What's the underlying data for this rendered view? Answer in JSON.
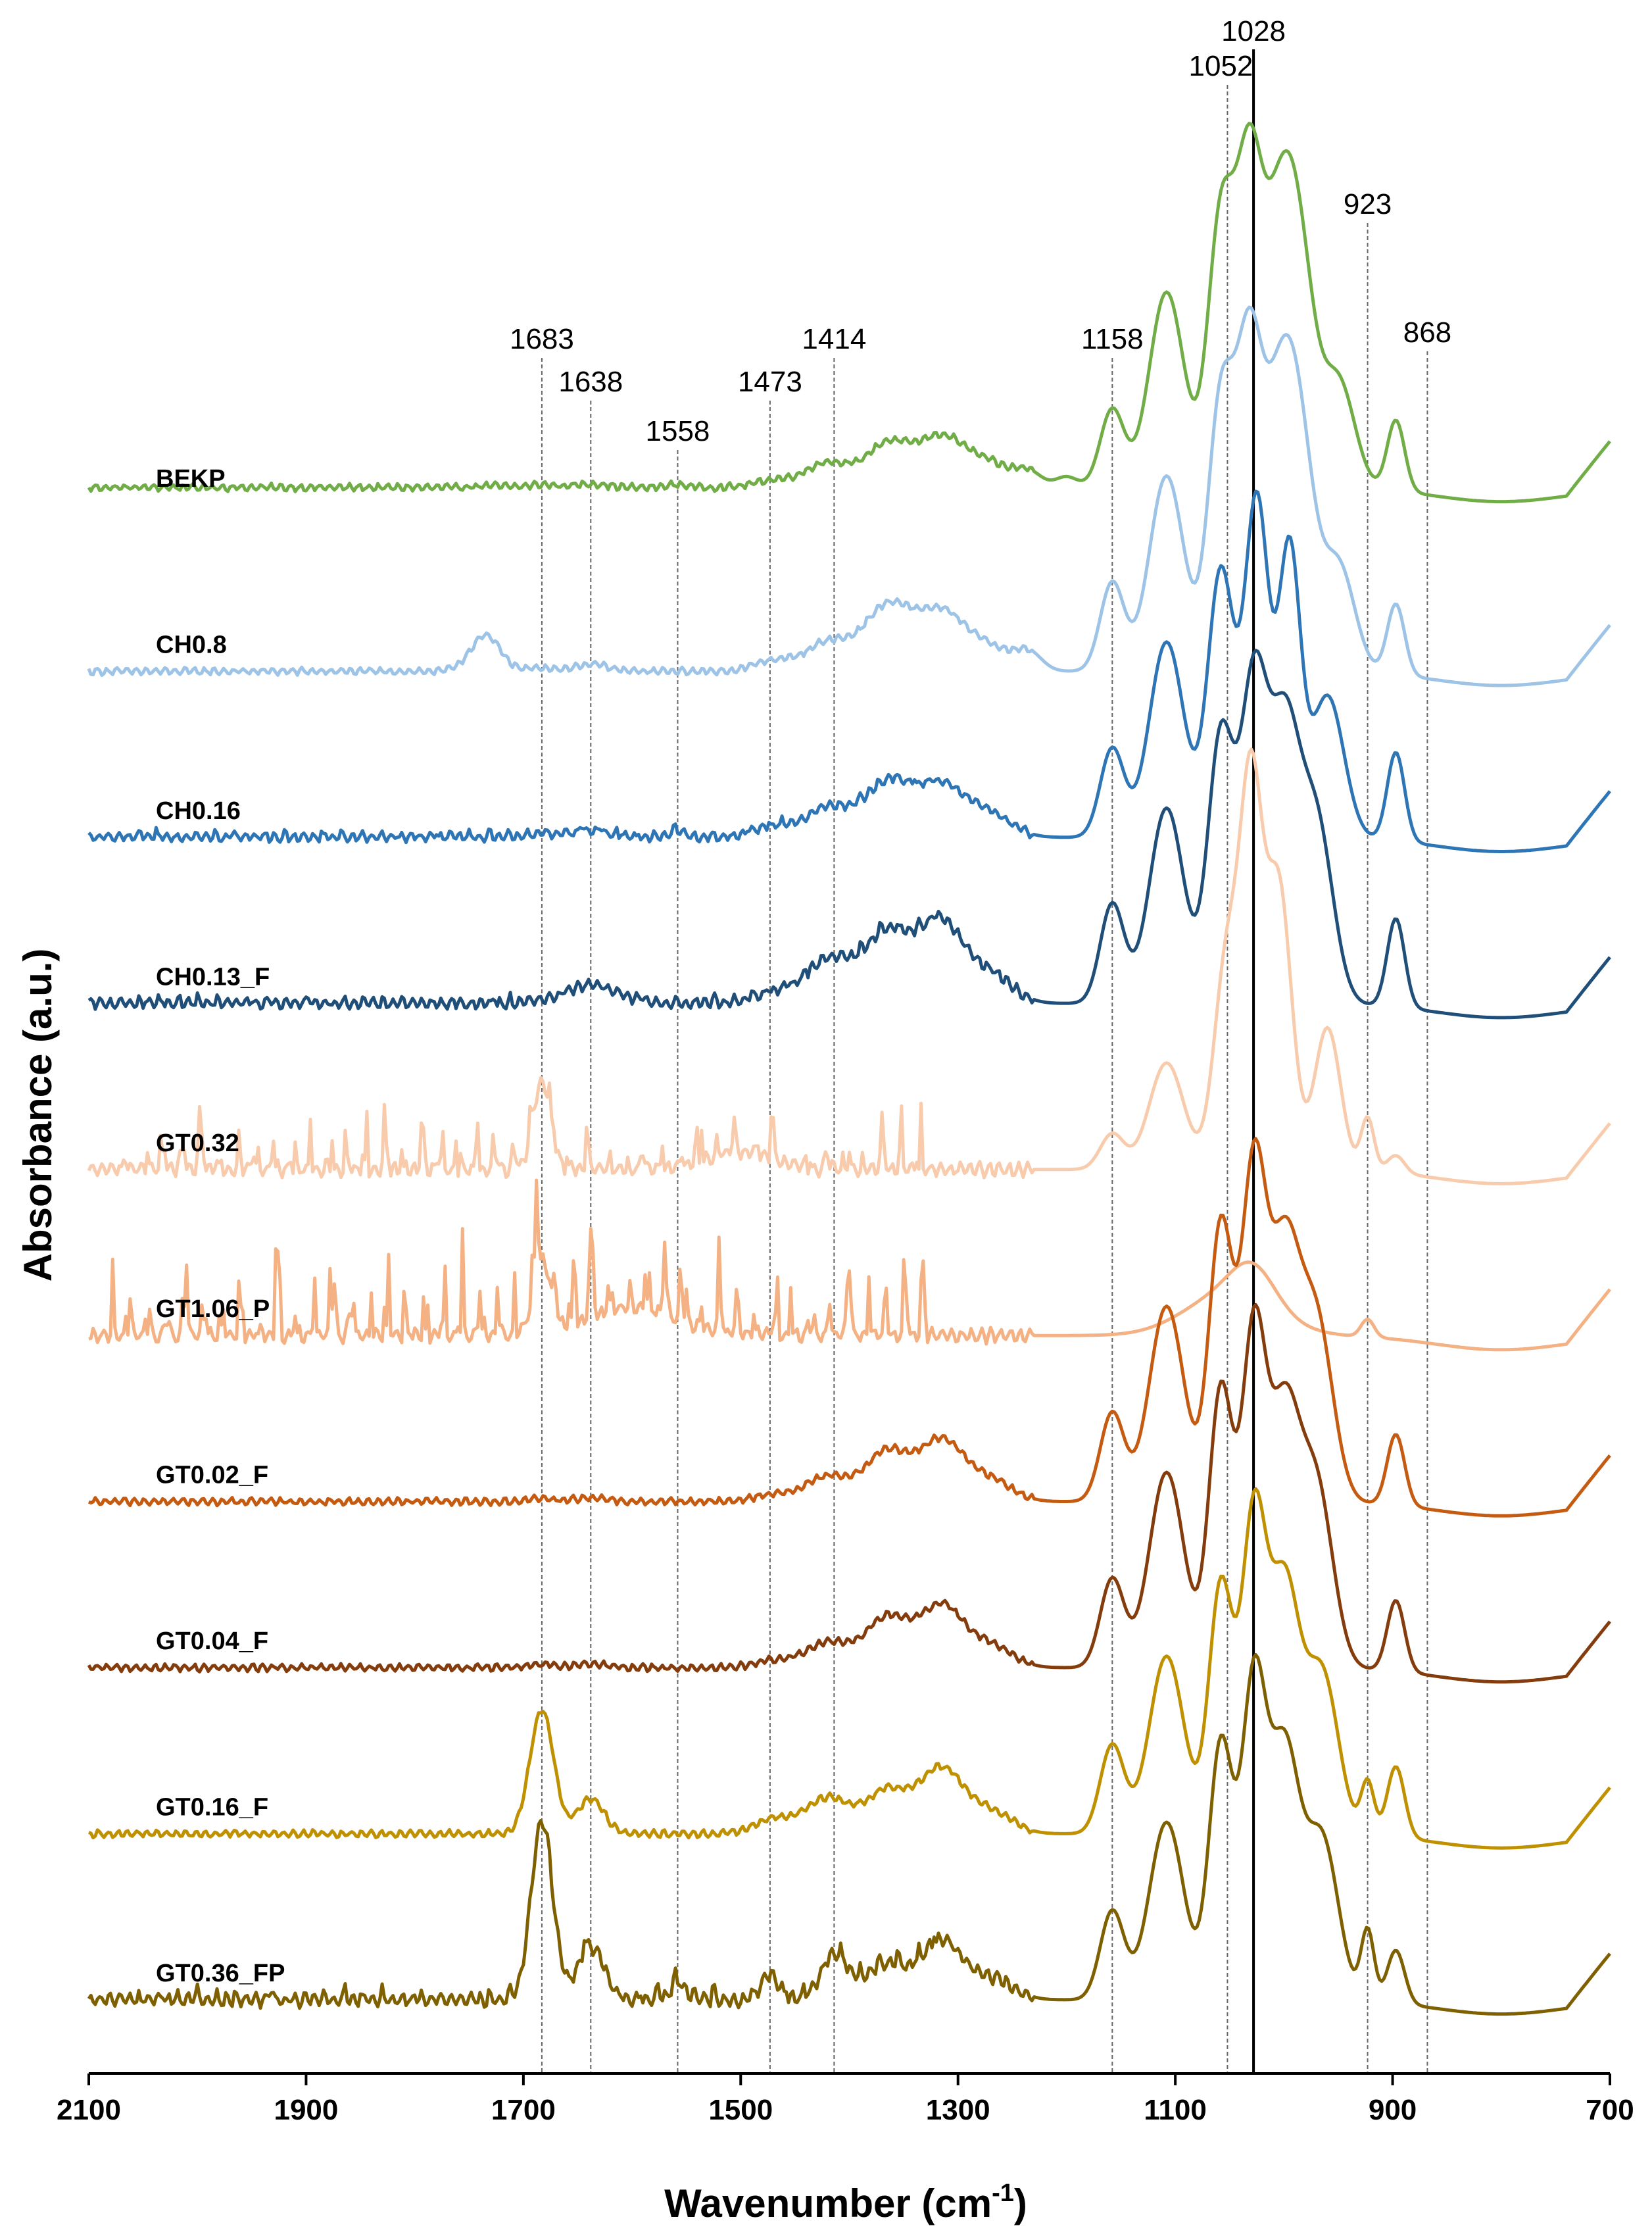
{
  "chart_data": {
    "type": "line",
    "title": "",
    "xlabel": "Wavenumber (cm",
    "xlabel_sup": "-1",
    "xlabel_close": ")",
    "ylabel": "Absorbance (a.u.)",
    "xlim": [
      2100,
      700
    ],
    "x_reversed": true,
    "x_ticks": [
      2100,
      1900,
      1700,
      1500,
      1300,
      1100,
      900,
      700
    ],
    "grid": false,
    "solid_reference_line": 1028,
    "annotations": [
      {
        "value": 1683,
        "label": "1683"
      },
      {
        "value": 1638,
        "label": "1638"
      },
      {
        "value": 1558,
        "label": "1558"
      },
      {
        "value": 1473,
        "label": "1473"
      },
      {
        "value": 1414,
        "label": "1414"
      },
      {
        "value": 1158,
        "label": "1158"
      },
      {
        "value": 1052,
        "label": "1052"
      },
      {
        "value": 1028,
        "label": "1028"
      },
      {
        "value": 923,
        "label": "923"
      },
      {
        "value": 868,
        "label": "868"
      }
    ],
    "series": [
      {
        "name": "BEKP",
        "color": "#70ad47",
        "baseline": 0.1,
        "scale": 1.0,
        "noise": 0.004,
        "spikes": 0.0,
        "peaks": [
          [
            1730,
            0.005,
            15
          ],
          [
            1683,
            0.008,
            12
          ],
          [
            1638,
            0.01,
            15
          ],
          [
            1558,
            0.008,
            10
          ],
          [
            1470,
            0.02,
            18
          ],
          [
            1420,
            0.07,
            20
          ],
          [
            1365,
            0.12,
            20
          ],
          [
            1315,
            0.14,
            22
          ],
          [
            1270,
            0.06,
            20
          ],
          [
            1235,
            0.04,
            12
          ],
          [
            1200,
            0.03,
            10
          ],
          [
            1158,
            0.22,
            11
          ],
          [
            1108,
            0.55,
            16
          ],
          [
            1058,
            0.75,
            12
          ],
          [
            1032,
            0.85,
            12
          ],
          [
            1005,
            0.65,
            14
          ],
          [
            985,
            0.55,
            14
          ],
          [
            950,
            0.3,
            15
          ],
          [
            897,
            0.2,
            8
          ]
        ]
      },
      {
        "name": "CH0.8",
        "color": "#9dc3e6",
        "baseline": 0.05,
        "scale": 1.0,
        "noise": 0.004,
        "spikes": 0.0,
        "peaks": [
          [
            1735,
            0.1,
            14
          ],
          [
            1683,
            0.01,
            12
          ],
          [
            1638,
            0.02,
            15
          ],
          [
            1470,
            0.03,
            18
          ],
          [
            1420,
            0.08,
            20
          ],
          [
            1365,
            0.18,
            22
          ],
          [
            1315,
            0.16,
            22
          ],
          [
            1270,
            0.06,
            20
          ],
          [
            1235,
            0.05,
            12
          ],
          [
            1158,
            0.25,
            11
          ],
          [
            1108,
            0.55,
            16
          ],
          [
            1058,
            0.75,
            12
          ],
          [
            1032,
            0.85,
            12
          ],
          [
            1005,
            0.65,
            14
          ],
          [
            985,
            0.55,
            14
          ],
          [
            950,
            0.3,
            15
          ],
          [
            897,
            0.2,
            8
          ]
        ]
      },
      {
        "name": "CH0.16",
        "color": "#2e75b6",
        "baseline": 0.05,
        "scale": 1.0,
        "noise": 0.005,
        "spikes": 0.02,
        "peaks": [
          [
            1683,
            0.01,
            12
          ],
          [
            1638,
            0.02,
            15
          ],
          [
            1558,
            0.02,
            6
          ],
          [
            1470,
            0.03,
            18
          ],
          [
            1420,
            0.08,
            20
          ],
          [
            1365,
            0.15,
            22
          ],
          [
            1315,
            0.14,
            22
          ],
          [
            1270,
            0.06,
            20
          ],
          [
            1158,
            0.25,
            11
          ],
          [
            1108,
            0.55,
            16
          ],
          [
            1058,
            0.75,
            12
          ],
          [
            1025,
            0.95,
            11
          ],
          [
            995,
            0.8,
            10
          ],
          [
            960,
            0.4,
            15
          ],
          [
            897,
            0.25,
            8
          ]
        ]
      },
      {
        "name": "CH0.13_F",
        "color": "#1f4e79",
        "baseline": 0.05,
        "scale": 1.0,
        "noise": 0.006,
        "spikes": 0.02,
        "peaks": [
          [
            1638,
            0.05,
            25
          ],
          [
            1470,
            0.03,
            18
          ],
          [
            1420,
            0.12,
            20
          ],
          [
            1365,
            0.2,
            22
          ],
          [
            1315,
            0.22,
            20
          ],
          [
            1270,
            0.08,
            20
          ],
          [
            1158,
            0.28,
            11
          ],
          [
            1108,
            0.55,
            16
          ],
          [
            1058,
            0.75,
            12
          ],
          [
            1028,
            0.85,
            12
          ],
          [
            1000,
            0.75,
            14
          ],
          [
            970,
            0.5,
            15
          ],
          [
            897,
            0.25,
            8
          ]
        ]
      },
      {
        "name": "GT0.32",
        "color": "#f8cbad",
        "baseline": 0.05,
        "scale": 1.0,
        "noise": 0.008,
        "spikes": 0.18,
        "peaks": [
          [
            1683,
            0.25,
            8
          ],
          [
            1500,
            0.05,
            30
          ],
          [
            1158,
            0.1,
            11
          ],
          [
            1108,
            0.3,
            16
          ],
          [
            1052,
            0.6,
            12
          ],
          [
            1030,
            0.98,
            10
          ],
          [
            1005,
            0.8,
            12
          ],
          [
            960,
            0.4,
            12
          ],
          [
            923,
            0.15,
            6
          ],
          [
            897,
            0.05,
            8
          ]
        ]
      },
      {
        "name": "GT1.06_P",
        "color": "#f4b183",
        "baseline": 0.05,
        "scale": 1.0,
        "noise": 0.008,
        "spikes": 0.32,
        "peaks": [
          [
            1683,
            0.2,
            8
          ],
          [
            1600,
            0.08,
            40
          ],
          [
            1050,
            0.12,
            40
          ],
          [
            1028,
            0.1,
            20
          ],
          [
            923,
            0.05,
            6
          ]
        ]
      },
      {
        "name": "GT0.02_F",
        "color": "#c55a11",
        "baseline": 0.05,
        "scale": 1.0,
        "noise": 0.004,
        "spikes": 0.0,
        "peaks": [
          [
            1683,
            0.01,
            12
          ],
          [
            1638,
            0.01,
            15
          ],
          [
            1470,
            0.02,
            18
          ],
          [
            1420,
            0.07,
            20
          ],
          [
            1365,
            0.14,
            20
          ],
          [
            1315,
            0.17,
            20
          ],
          [
            1270,
            0.06,
            20
          ],
          [
            1158,
            0.25,
            11
          ],
          [
            1108,
            0.55,
            16
          ],
          [
            1058,
            0.78,
            11
          ],
          [
            1028,
            0.9,
            11
          ],
          [
            1000,
            0.7,
            14
          ],
          [
            970,
            0.5,
            15
          ],
          [
            897,
            0.2,
            8
          ]
        ]
      },
      {
        "name": "GT0.04_F",
        "color": "#843c0c",
        "baseline": 0.05,
        "scale": 1.0,
        "noise": 0.004,
        "spikes": 0.0,
        "peaks": [
          [
            1683,
            0.01,
            12
          ],
          [
            1638,
            0.01,
            15
          ],
          [
            1470,
            0.02,
            18
          ],
          [
            1420,
            0.07,
            20
          ],
          [
            1365,
            0.14,
            20
          ],
          [
            1315,
            0.17,
            20
          ],
          [
            1270,
            0.06,
            20
          ],
          [
            1158,
            0.25,
            11
          ],
          [
            1108,
            0.55,
            16
          ],
          [
            1058,
            0.78,
            11
          ],
          [
            1028,
            0.9,
            11
          ],
          [
            1000,
            0.7,
            14
          ],
          [
            970,
            0.5,
            15
          ],
          [
            897,
            0.2,
            8
          ]
        ]
      },
      {
        "name": "GT0.16_F",
        "color": "#bf9000",
        "baseline": 0.05,
        "scale": 1.0,
        "noise": 0.004,
        "spikes": 0.0,
        "peaks": [
          [
            1683,
            0.35,
            11
          ],
          [
            1638,
            0.1,
            12
          ],
          [
            1470,
            0.04,
            18
          ],
          [
            1420,
            0.1,
            20
          ],
          [
            1365,
            0.12,
            20
          ],
          [
            1315,
            0.18,
            20
          ],
          [
            1270,
            0.06,
            20
          ],
          [
            1158,
            0.25,
            11
          ],
          [
            1108,
            0.5,
            16
          ],
          [
            1058,
            0.7,
            11
          ],
          [
            1028,
            0.85,
            11
          ],
          [
            1000,
            0.7,
            14
          ],
          [
            965,
            0.45,
            15
          ],
          [
            923,
            0.15,
            6
          ],
          [
            897,
            0.2,
            8
          ]
        ]
      },
      {
        "name": "GT0.36_FP",
        "color": "#7f6000",
        "baseline": 0.05,
        "scale": 1.0,
        "noise": 0.008,
        "spikes": 0.04,
        "peaks": [
          [
            1683,
            0.5,
            10
          ],
          [
            1638,
            0.15,
            12
          ],
          [
            1558,
            0.05,
            6
          ],
          [
            1473,
            0.07,
            8
          ],
          [
            1414,
            0.12,
            12
          ],
          [
            1365,
            0.1,
            20
          ],
          [
            1315,
            0.16,
            18
          ],
          [
            1270,
            0.06,
            20
          ],
          [
            1158,
            0.25,
            11
          ],
          [
            1108,
            0.5,
            16
          ],
          [
            1058,
            0.72,
            11
          ],
          [
            1028,
            0.85,
            11
          ],
          [
            1000,
            0.7,
            14
          ],
          [
            965,
            0.45,
            15
          ],
          [
            923,
            0.2,
            6
          ],
          [
            897,
            0.15,
            8
          ]
        ]
      }
    ]
  }
}
